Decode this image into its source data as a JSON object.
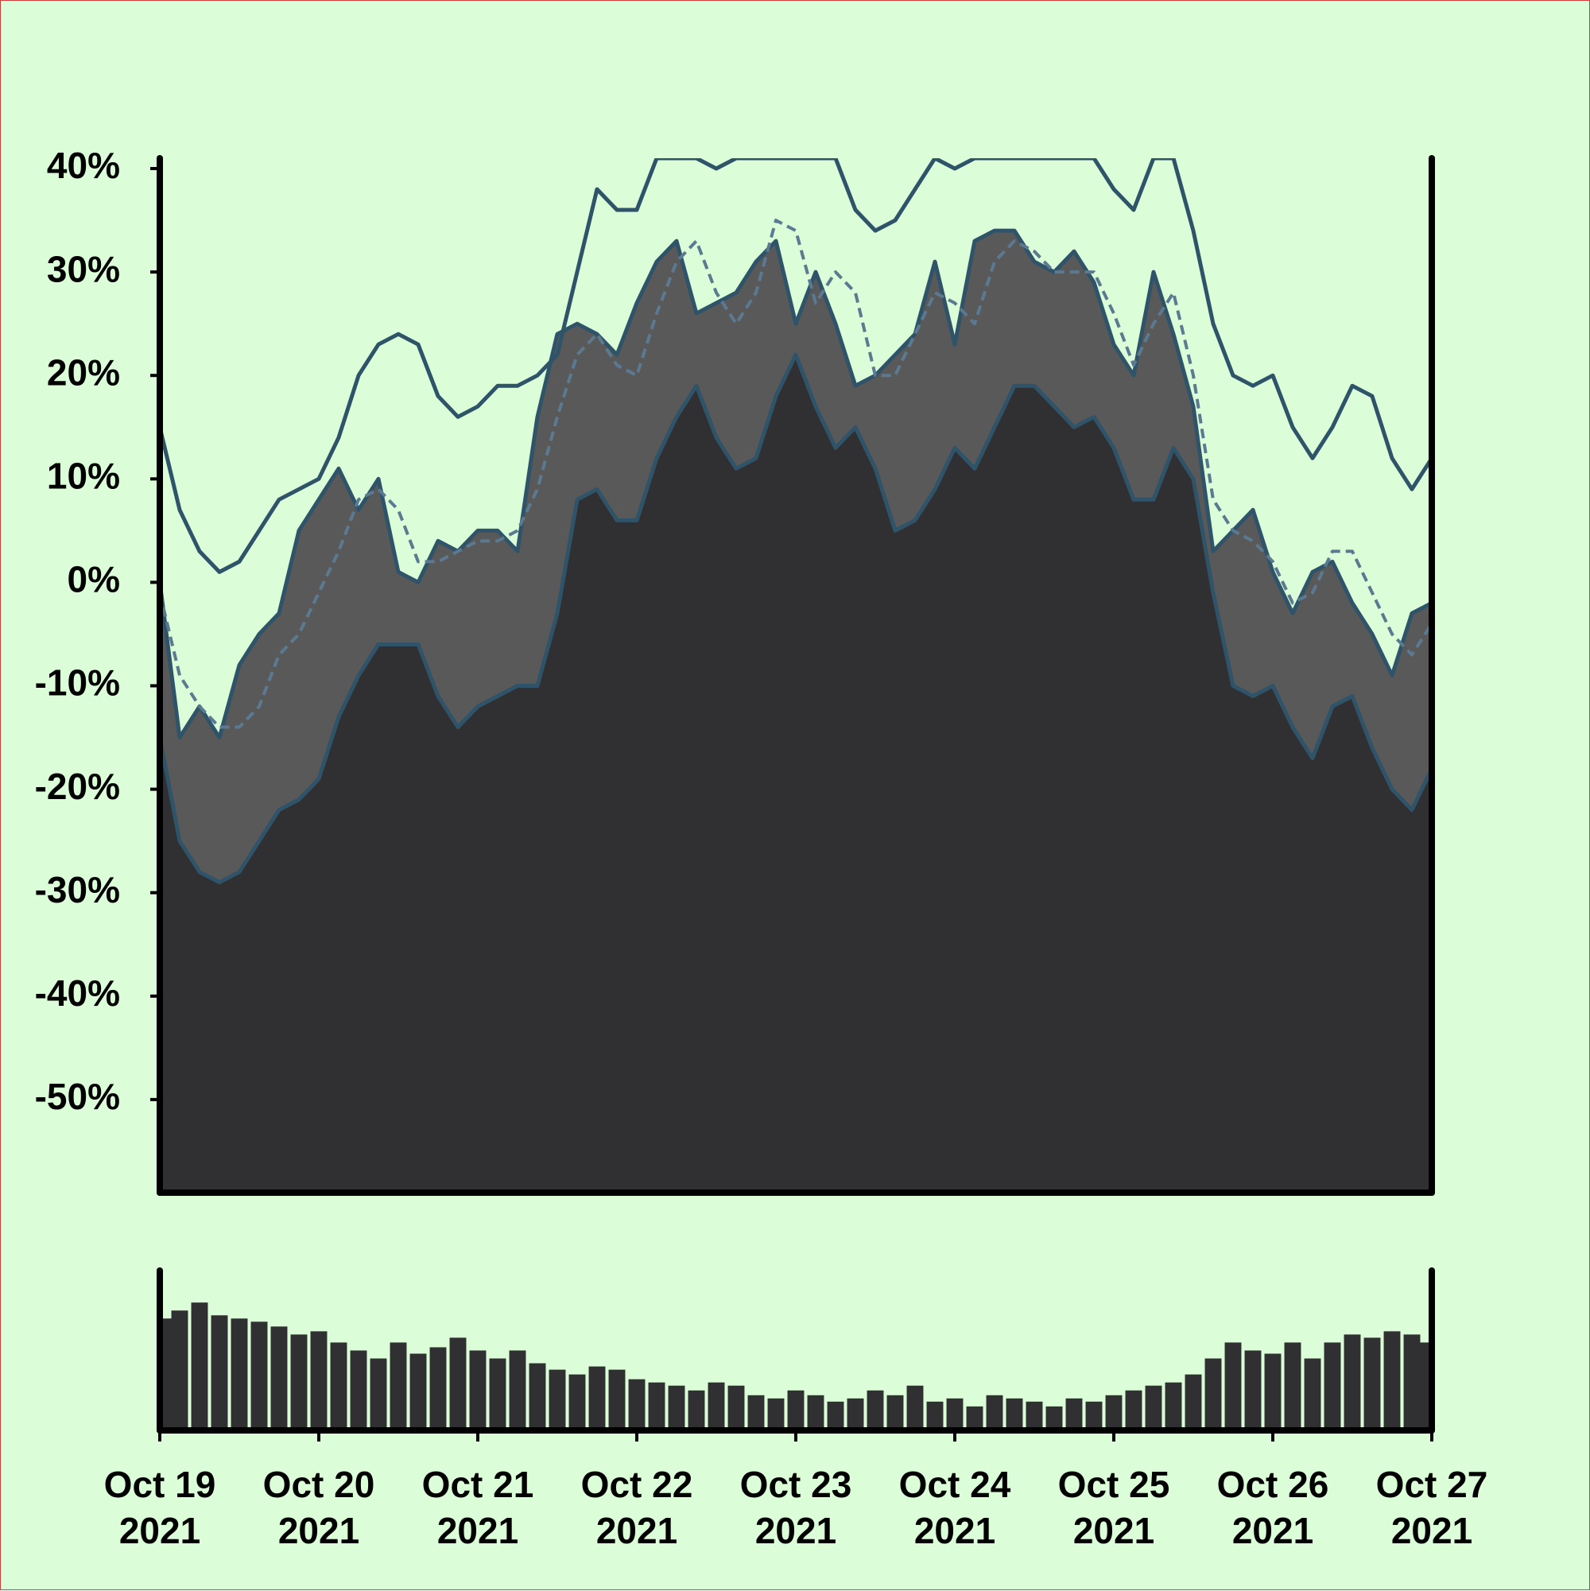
{
  "chart_data": {
    "type": "area",
    "x": [
      "2021-10-19T00:00",
      "2021-10-19T03:00",
      "2021-10-19T06:00",
      "2021-10-19T09:00",
      "2021-10-19T12:00",
      "2021-10-19T15:00",
      "2021-10-19T18:00",
      "2021-10-19T21:00",
      "2021-10-20T00:00",
      "2021-10-20T03:00",
      "2021-10-20T06:00",
      "2021-10-20T09:00",
      "2021-10-20T12:00",
      "2021-10-20T15:00",
      "2021-10-20T18:00",
      "2021-10-20T21:00",
      "2021-10-21T00:00",
      "2021-10-21T03:00",
      "2021-10-21T06:00",
      "2021-10-21T09:00",
      "2021-10-21T12:00",
      "2021-10-21T15:00",
      "2021-10-21T18:00",
      "2021-10-21T21:00",
      "2021-10-22T00:00",
      "2021-10-22T03:00",
      "2021-10-22T06:00",
      "2021-10-22T09:00",
      "2021-10-22T12:00",
      "2021-10-22T15:00",
      "2021-10-22T18:00",
      "2021-10-22T21:00",
      "2021-10-23T00:00",
      "2021-10-23T03:00",
      "2021-10-23T06:00",
      "2021-10-23T09:00",
      "2021-10-23T12:00",
      "2021-10-23T15:00",
      "2021-10-23T18:00",
      "2021-10-23T21:00",
      "2021-10-24T00:00",
      "2021-10-24T03:00",
      "2021-10-24T06:00",
      "2021-10-24T09:00",
      "2021-10-24T12:00",
      "2021-10-24T15:00",
      "2021-10-24T18:00",
      "2021-10-24T21:00",
      "2021-10-25T00:00",
      "2021-10-25T03:00",
      "2021-10-25T06:00",
      "2021-10-25T09:00",
      "2021-10-25T12:00",
      "2021-10-25T15:00",
      "2021-10-25T18:00",
      "2021-10-25T21:00",
      "2021-10-26T00:00",
      "2021-10-26T03:00",
      "2021-10-26T06:00",
      "2021-10-26T09:00",
      "2021-10-26T12:00",
      "2021-10-26T15:00",
      "2021-10-26T18:00",
      "2021-10-26T21:00",
      "2021-10-27T00:00"
    ],
    "series": [
      {
        "color": "#2f5469",
        "fill": "#595959",
        "values": [
          0,
          -15,
          -12,
          -15,
          -8,
          -5,
          -3,
          5,
          8,
          11,
          7,
          10,
          1,
          0,
          4,
          3,
          5,
          5,
          3,
          16,
          24,
          25,
          24,
          22,
          27,
          31,
          33,
          26,
          27,
          28,
          31,
          33,
          25,
          30,
          25,
          19,
          20,
          22,
          24,
          31,
          23,
          33,
          34,
          34,
          31,
          30,
          32,
          29,
          23,
          20,
          30,
          24,
          17,
          3,
          5,
          7,
          1,
          -3,
          1,
          2,
          -2,
          -5,
          -9,
          -3,
          -2
        ]
      },
      {
        "color": "#2f5469",
        "fill": "#302f31",
        "values": [
          -15,
          -25,
          -28,
          -29,
          -28,
          -25,
          -22,
          -21,
          -19,
          -13,
          -9,
          -6,
          -6,
          -6,
          -11,
          -14,
          -12,
          -11,
          -10,
          -10,
          -3,
          8,
          9,
          6,
          6,
          12,
          16,
          19,
          14,
          11,
          12,
          18,
          22,
          17,
          13,
          15,
          11,
          5,
          6,
          9,
          13,
          11,
          15,
          19,
          19,
          17,
          15,
          16,
          13,
          8,
          8,
          13,
          10,
          -1,
          -10,
          -11,
          -10,
          -14,
          -17,
          -12,
          -11,
          -16,
          -20,
          -22,
          -18
        ]
      },
      {
        "color": "#5b7a91",
        "dashed": true,
        "values": [
          -1,
          -9,
          -12,
          -14,
          -14,
          -12,
          -7,
          -5,
          -1,
          3,
          8,
          9,
          7,
          2,
          2,
          3,
          4,
          4,
          5,
          9,
          16,
          22,
          24,
          21,
          20,
          26,
          31,
          33,
          28,
          25,
          28,
          35,
          34,
          27,
          30,
          28,
          20,
          20,
          24,
          28,
          27,
          25,
          31,
          33,
          32,
          30,
          30,
          30,
          26,
          21,
          25,
          28,
          20,
          8,
          5,
          4,
          2,
          -2,
          -1,
          3,
          3,
          -1,
          -5,
          -7,
          -4
        ]
      },
      {
        "color": "#2f5469",
        "values": [
          15,
          7,
          3,
          1,
          2,
          5,
          8,
          9,
          10,
          14,
          20,
          23,
          24,
          23,
          18,
          16,
          17,
          19,
          19,
          20,
          22,
          30,
          38,
          36,
          36,
          41,
          41,
          41,
          40,
          41,
          41,
          41,
          41,
          41,
          41,
          36,
          34,
          35,
          38,
          41,
          40,
          41,
          41,
          41,
          41,
          41,
          41,
          41,
          38,
          36,
          41,
          41,
          34,
          25,
          20,
          19,
          20,
          15,
          12,
          15,
          19,
          18,
          12,
          9,
          12
        ]
      }
    ],
    "volume": {
      "color": "#302f31",
      "ylim": [
        0,
        100
      ],
      "values": [
        70,
        75,
        80,
        72,
        70,
        68,
        65,
        60,
        62,
        55,
        50,
        45,
        55,
        48,
        52,
        58,
        50,
        45,
        50,
        42,
        38,
        35,
        40,
        38,
        32,
        30,
        28,
        25,
        30,
        28,
        22,
        20,
        25,
        22,
        18,
        20,
        25,
        22,
        28,
        18,
        20,
        15,
        22,
        20,
        18,
        15,
        20,
        18,
        22,
        25,
        28,
        30,
        35,
        45,
        55,
        50,
        48,
        55,
        45,
        55,
        60,
        58,
        62,
        60,
        55
      ]
    },
    "xlim": [
      "2021-10-19T00:00",
      "2021-10-27T00:00"
    ],
    "xticks": [
      {
        "value": "2021-10-19T00:00",
        "label": "Oct 19 2021"
      },
      {
        "value": "2021-10-20T00:00",
        "label": "Oct 20 2021"
      },
      {
        "value": "2021-10-21T00:00",
        "label": "Oct 21 2021"
      },
      {
        "value": "2021-10-22T00:00",
        "label": "Oct 22 2021"
      },
      {
        "value": "2021-10-23T00:00",
        "label": "Oct 23 2021"
      },
      {
        "value": "2021-10-24T00:00",
        "label": "Oct 24 2021"
      },
      {
        "value": "2021-10-25T00:00",
        "label": "Oct 25 2021"
      },
      {
        "value": "2021-10-26T00:00",
        "label": "Oct 26 2021"
      },
      {
        "value": "2021-10-27T00:00",
        "label": "Oct 27 2021"
      }
    ],
    "ylim": [
      -59,
      41
    ],
    "yticks": [
      {
        "value": 40,
        "label": "40%"
      },
      {
        "value": 30,
        "label": "30%"
      },
      {
        "value": 20,
        "label": "20%"
      },
      {
        "value": 10,
        "label": "10%"
      },
      {
        "value": 0,
        "label": "0%"
      },
      {
        "value": -10,
        "label": "-10%"
      },
      {
        "value": -20,
        "label": "-20%"
      },
      {
        "value": -30,
        "label": "-30%"
      },
      {
        "value": -40,
        "label": "-40%"
      },
      {
        "value": -50,
        "label": "-50%"
      }
    ]
  }
}
